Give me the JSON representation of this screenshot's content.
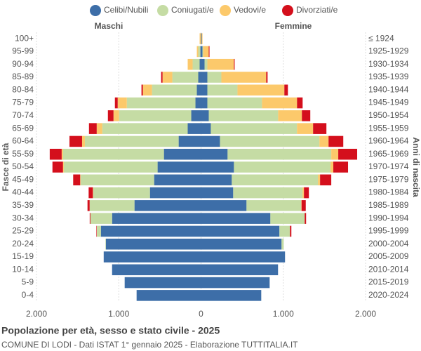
{
  "chart_data": {
    "type": "pyramid",
    "title": "Popolazione per età, sesso e stato civile - 2025",
    "subtitle": "COMUNE DI LODI - Dati ISTAT 1° gennaio 2025 - Elaborazione TUTTITALIA.IT",
    "left_label": "Maschi",
    "right_label": "Femmine",
    "y_label": "Fasce di età",
    "y2_label": "Anni di nascita",
    "categories": [
      "100+",
      "95-99",
      "90-94",
      "85-89",
      "80-84",
      "75-79",
      "70-74",
      "65-69",
      "60-64",
      "55-59",
      "50-54",
      "45-49",
      "40-44",
      "35-39",
      "30-34",
      "25-29",
      "20-24",
      "15-19",
      "10-14",
      "5-9",
      "0-4"
    ],
    "categories2": [
      "≤ 1924",
      "1925-1929",
      "1930-1934",
      "1935-1939",
      "1940-1944",
      "1945-1949",
      "1950-1954",
      "1955-1959",
      "1960-1964",
      "1965-1969",
      "1970-1974",
      "1975-1979",
      "1980-1984",
      "1985-1989",
      "1990-1994",
      "1995-1999",
      "2000-2004",
      "2005-2009",
      "2010-2014",
      "2015-2019",
      "2020-2024"
    ],
    "series": [
      {
        "name": "Celibi/Nubili",
        "color": "#3d6ea8",
        "male": [
          0,
          8,
          17,
          34,
          51,
          68,
          119,
          162,
          272,
          451,
          528,
          570,
          621,
          809,
          1081,
          1217,
          1157,
          1183,
          1081,
          928,
          783
        ],
        "female": [
          9,
          17,
          43,
          77,
          77,
          77,
          94,
          119,
          230,
          323,
          400,
          374,
          391,
          553,
          843,
          953,
          979,
          1021,
          936,
          834,
          732
        ]
      },
      {
        "name": "Coniugati/e",
        "color": "#c5dca4",
        "male": [
          0,
          26,
          85,
          315,
          545,
          834,
          877,
          1038,
          1140,
          1226,
          1140,
          894,
          689,
          545,
          264,
          51,
          5,
          0,
          0,
          0,
          0
        ],
        "female": [
          0,
          9,
          34,
          170,
          366,
          664,
          843,
          1047,
          1209,
          1260,
          1174,
          1047,
          843,
          664,
          417,
          128,
          26,
          0,
          0,
          0,
          0
        ]
      },
      {
        "name": "Vedovi/e",
        "color": "#fcc96b",
        "male": [
          17,
          17,
          60,
          119,
          111,
          111,
          68,
          68,
          34,
          17,
          10,
          5,
          5,
          0,
          0,
          0,
          0,
          0,
          0,
          0,
          0
        ],
        "female": [
          9,
          68,
          323,
          545,
          570,
          426,
          289,
          196,
          111,
          85,
          34,
          26,
          17,
          5,
          0,
          0,
          0,
          0,
          0,
          0,
          0
        ]
      },
      {
        "name": "Divorziati/e",
        "color": "#d40f1c",
        "male": [
          0,
          0,
          0,
          17,
          17,
          34,
          68,
          94,
          153,
          145,
          128,
          85,
          51,
          26,
          8,
          5,
          0,
          0,
          0,
          0,
          0
        ],
        "female": [
          0,
          9,
          9,
          17,
          43,
          68,
          102,
          162,
          179,
          230,
          179,
          136,
          60,
          51,
          17,
          17,
          0,
          0,
          0,
          0,
          0
        ]
      }
    ],
    "xlim": [
      -2000,
      2000
    ],
    "xticks": [
      {
        "value": -2000,
        "label": "2.000"
      },
      {
        "value": -1000,
        "label": "1.000"
      },
      0,
      {
        "value": 1000,
        "label": "1.000"
      },
      {
        "value": 2000,
        "label": "2.000"
      }
    ],
    "grid": true
  }
}
